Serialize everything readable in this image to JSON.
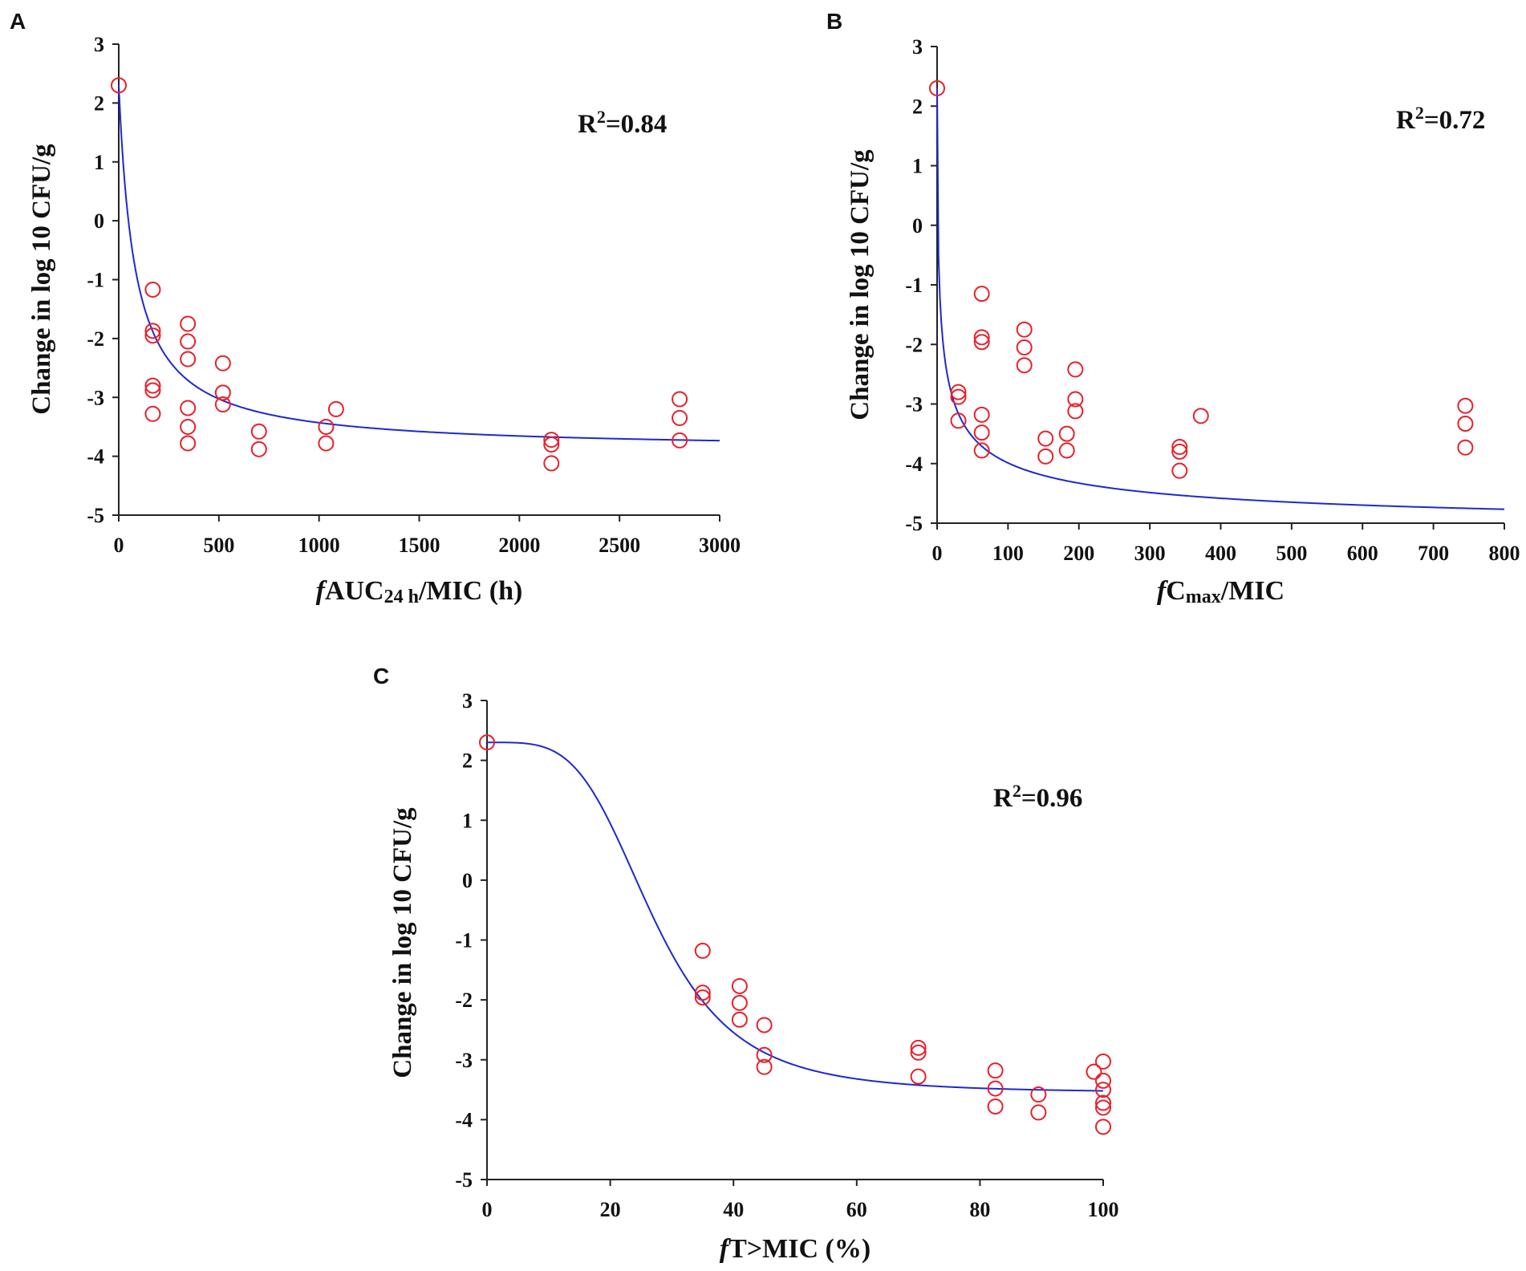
{
  "chart_data": [
    {
      "panel": "A",
      "type": "scatter",
      "title": "",
      "ylabel": "Change in log 10 CFU/g",
      "xlabel": {
        "italic": "f",
        "main": "AUC",
        "sub": "24 h",
        "rest": "/MIC (h)"
      },
      "annotation": {
        "r2_prefix": "R",
        "r2_sup": "2",
        "r2_value": "=0.84"
      },
      "xlim": [
        0,
        3000
      ],
      "ylim": [
        -5,
        3
      ],
      "xticks": [
        "0",
        "500",
        "1000",
        "1500",
        "2000",
        "2500",
        "3000"
      ],
      "yticks": [
        "3",
        "2",
        "1",
        "0",
        "-1",
        "-2",
        "-3",
        "-4",
        "-5"
      ],
      "points": [
        {
          "x": 0,
          "y": 2.3
        },
        {
          "x": 170,
          "y": -1.17
        },
        {
          "x": 170,
          "y": -1.87
        },
        {
          "x": 170,
          "y": -1.95
        },
        {
          "x": 170,
          "y": -2.8
        },
        {
          "x": 170,
          "y": -2.88
        },
        {
          "x": 170,
          "y": -3.28
        },
        {
          "x": 345,
          "y": -1.75
        },
        {
          "x": 345,
          "y": -2.05
        },
        {
          "x": 345,
          "y": -2.35
        },
        {
          "x": 345,
          "y": -3.18
        },
        {
          "x": 345,
          "y": -3.5
        },
        {
          "x": 345,
          "y": -3.78
        },
        {
          "x": 520,
          "y": -2.42
        },
        {
          "x": 520,
          "y": -2.92
        },
        {
          "x": 520,
          "y": -3.12
        },
        {
          "x": 700,
          "y": -3.58
        },
        {
          "x": 700,
          "y": -3.88
        },
        {
          "x": 1035,
          "y": -3.5
        },
        {
          "x": 1035,
          "y": -3.78
        },
        {
          "x": 1085,
          "y": -3.2
        },
        {
          "x": 2160,
          "y": -3.72
        },
        {
          "x": 2160,
          "y": -3.8
        },
        {
          "x": 2160,
          "y": -4.12
        },
        {
          "x": 2800,
          "y": -3.03
        },
        {
          "x": 2800,
          "y": -3.35
        },
        {
          "x": 2800,
          "y": -3.73
        }
      ],
      "fit": {
        "model": "emax",
        "E0": 2.3,
        "Emax": 6.2,
        "EC50": 82,
        "hill": 1.0,
        "x_end": 3000
      }
    },
    {
      "panel": "B",
      "type": "scatter",
      "title": "",
      "ylabel": "Change in log 10 CFU/g",
      "xlabel": {
        "italic": "f",
        "main": "C",
        "sub": "max",
        "rest": "/MIC"
      },
      "annotation": {
        "r2_prefix": "R",
        "r2_sup": "2",
        "r2_value": "=0.72"
      },
      "xlim": [
        0,
        800
      ],
      "ylim": [
        -5,
        3
      ],
      "xticks": [
        "0",
        "100",
        "200",
        "300",
        "400",
        "500",
        "600",
        "700",
        "800"
      ],
      "yticks": [
        "3",
        "2",
        "1",
        "0",
        "-1",
        "-2",
        "-3",
        "-4",
        "-5"
      ],
      "points": [
        {
          "x": 0,
          "y": 2.3
        },
        {
          "x": 30,
          "y": -2.8
        },
        {
          "x": 30,
          "y": -2.88
        },
        {
          "x": 30,
          "y": -3.28
        },
        {
          "x": 63,
          "y": -1.15
        },
        {
          "x": 63,
          "y": -1.88
        },
        {
          "x": 63,
          "y": -1.96
        },
        {
          "x": 63,
          "y": -3.18
        },
        {
          "x": 63,
          "y": -3.48
        },
        {
          "x": 63,
          "y": -3.78
        },
        {
          "x": 123,
          "y": -1.75
        },
        {
          "x": 123,
          "y": -2.05
        },
        {
          "x": 123,
          "y": -2.35
        },
        {
          "x": 153,
          "y": -3.58
        },
        {
          "x": 153,
          "y": -3.88
        },
        {
          "x": 183,
          "y": -3.5
        },
        {
          "x": 183,
          "y": -3.78
        },
        {
          "x": 195,
          "y": -2.42
        },
        {
          "x": 195,
          "y": -2.92
        },
        {
          "x": 195,
          "y": -3.12
        },
        {
          "x": 342,
          "y": -3.72
        },
        {
          "x": 342,
          "y": -3.8
        },
        {
          "x": 342,
          "y": -4.12
        },
        {
          "x": 372,
          "y": -3.2
        },
        {
          "x": 745,
          "y": -3.03
        },
        {
          "x": 745,
          "y": -3.33
        },
        {
          "x": 745,
          "y": -3.73
        }
      ],
      "fit": {
        "model": "emax",
        "E0": 2.3,
        "Emax": 7.5,
        "EC50": 5,
        "hill": 0.55,
        "x_end": 800
      }
    },
    {
      "panel": "C",
      "type": "scatter",
      "title": "",
      "ylabel": "Change in log 10 CFU/g",
      "xlabel": {
        "italic": "f",
        "main": "T>MIC (%)",
        "sub": "",
        "rest": ""
      },
      "annotation": {
        "r2_prefix": "R",
        "r2_sup": "2",
        "r2_value": "=0.96"
      },
      "xlim": [
        0,
        100
      ],
      "ylim": [
        -5,
        3
      ],
      "xticks": [
        "0",
        "20",
        "40",
        "60",
        "80",
        "100"
      ],
      "yticks": [
        "3",
        "2",
        "1",
        "0",
        "-1",
        "-2",
        "-3",
        "-4",
        "-5"
      ],
      "points": [
        {
          "x": 0,
          "y": 2.3
        },
        {
          "x": 35,
          "y": -1.18
        },
        {
          "x": 35,
          "y": -1.88
        },
        {
          "x": 35,
          "y": -1.96
        },
        {
          "x": 41,
          "y": -1.77
        },
        {
          "x": 41,
          "y": -2.05
        },
        {
          "x": 41,
          "y": -2.33
        },
        {
          "x": 45,
          "y": -2.42
        },
        {
          "x": 45,
          "y": -2.92
        },
        {
          "x": 45,
          "y": -3.12
        },
        {
          "x": 70,
          "y": -2.8
        },
        {
          "x": 70,
          "y": -2.88
        },
        {
          "x": 70,
          "y": -3.28
        },
        {
          "x": 82.5,
          "y": -3.18
        },
        {
          "x": 82.5,
          "y": -3.48
        },
        {
          "x": 82.5,
          "y": -3.78
        },
        {
          "x": 89.5,
          "y": -3.58
        },
        {
          "x": 89.5,
          "y": -3.88
        },
        {
          "x": 98.5,
          "y": -3.2
        },
        {
          "x": 100,
          "y": -3.03
        },
        {
          "x": 100,
          "y": -3.35
        },
        {
          "x": 100,
          "y": -3.5
        },
        {
          "x": 100,
          "y": -3.72
        },
        {
          "x": 100,
          "y": -3.8
        },
        {
          "x": 100,
          "y": -4.12
        }
      ],
      "fit": {
        "model": "emax",
        "E0": 2.3,
        "Emax": 5.85,
        "EC50": 27,
        "hill": 4.0,
        "x_end": 100
      }
    }
  ]
}
